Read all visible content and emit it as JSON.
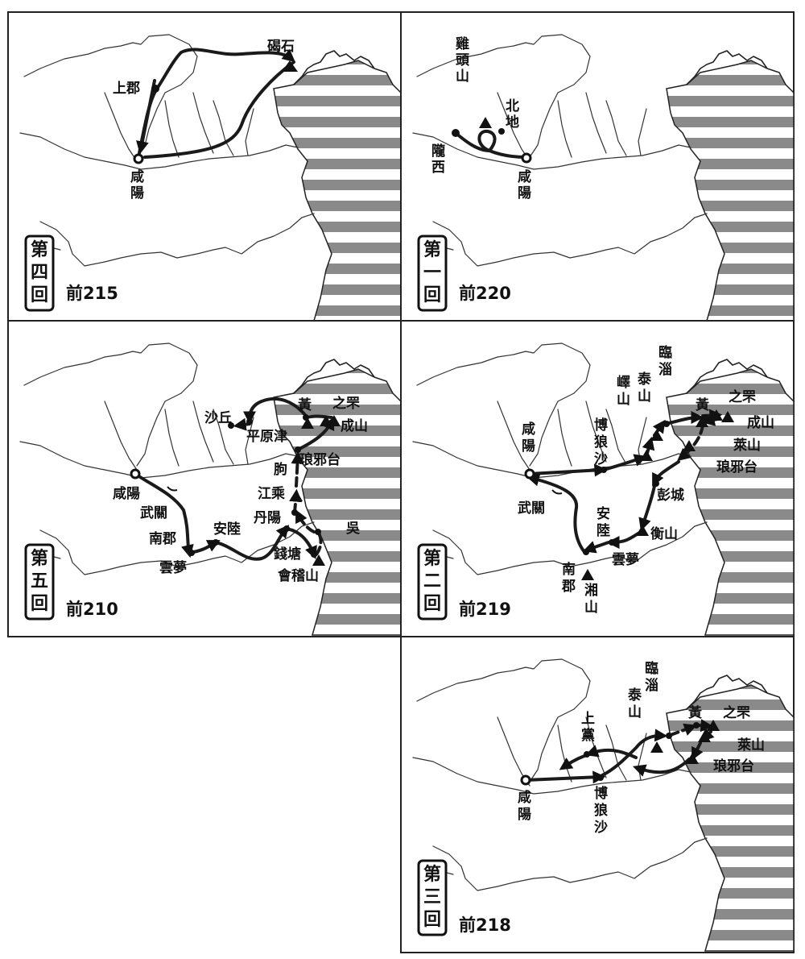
{
  "panels": [
    {
      "id": "p4",
      "badge": [
        "第",
        "四",
        "回"
      ],
      "date": "前215",
      "places": [
        {
          "text": "碣石",
          "kind": "mountain",
          "vertical": false
        },
        {
          "text": "上郡",
          "kind": "city",
          "vertical": false
        },
        {
          "text": "咸陽",
          "kind": "capital",
          "vertical": true
        }
      ]
    },
    {
      "id": "p1",
      "badge": [
        "第",
        "一",
        "回"
      ],
      "date": "前220",
      "places": [
        {
          "text": "雞頭山",
          "kind": "mountain",
          "vertical": true
        },
        {
          "text": "北地",
          "kind": "city",
          "vertical": true
        },
        {
          "text": "隴西",
          "kind": "city",
          "vertical": true
        },
        {
          "text": "咸陽",
          "kind": "capital",
          "vertical": true
        }
      ]
    },
    {
      "id": "p5",
      "badge": [
        "第",
        "五",
        "回"
      ],
      "date": "前210",
      "places": [
        {
          "text": "沙丘",
          "kind": "city",
          "vertical": false
        },
        {
          "text": "黃",
          "kind": "city",
          "vertical": false
        },
        {
          "text": "之罘",
          "kind": "mountain",
          "vertical": false
        },
        {
          "text": "成山",
          "kind": "mountain",
          "vertical": false
        },
        {
          "text": "平原津",
          "kind": "city",
          "vertical": false
        },
        {
          "text": "琅邪台",
          "kind": "mountain",
          "vertical": false
        },
        {
          "text": "朐",
          "kind": "city",
          "vertical": false
        },
        {
          "text": "江乘",
          "kind": "city",
          "vertical": false
        },
        {
          "text": "丹陽",
          "kind": "city",
          "vertical": false
        },
        {
          "text": "吳",
          "kind": "city",
          "vertical": false
        },
        {
          "text": "錢塘",
          "kind": "city",
          "vertical": false
        },
        {
          "text": "會稽山",
          "kind": "mountain",
          "vertical": false
        },
        {
          "text": "咸陽",
          "kind": "capital",
          "vertical": false
        },
        {
          "text": "武關",
          "kind": "pass",
          "vertical": false
        },
        {
          "text": "南郡",
          "kind": "city",
          "vertical": false
        },
        {
          "text": "安陸",
          "kind": "city",
          "vertical": false
        },
        {
          "text": "雲夢",
          "kind": "city",
          "vertical": false
        }
      ]
    },
    {
      "id": "p2",
      "badge": [
        "第",
        "二",
        "回"
      ],
      "date": "前219",
      "places": [
        {
          "text": "臨淄",
          "kind": "city",
          "vertical": true
        },
        {
          "text": "泰山",
          "kind": "mountain",
          "vertical": true
        },
        {
          "text": "嶧山",
          "kind": "mountain",
          "vertical": true
        },
        {
          "text": "黃",
          "kind": "city",
          "vertical": false
        },
        {
          "text": "之罘",
          "kind": "mountain",
          "vertical": false
        },
        {
          "text": "成山",
          "kind": "mountain",
          "vertical": false
        },
        {
          "text": "萊山",
          "kind": "mountain",
          "vertical": false
        },
        {
          "text": "琅邪台",
          "kind": "mountain",
          "vertical": false
        },
        {
          "text": "咸陽",
          "kind": "capital",
          "vertical": true
        },
        {
          "text": "博狼沙",
          "kind": "city",
          "vertical": true
        },
        {
          "text": "彭城",
          "kind": "city",
          "vertical": false
        },
        {
          "text": "武關",
          "kind": "pass",
          "vertical": false
        },
        {
          "text": "安陸",
          "kind": "city",
          "vertical": true
        },
        {
          "text": "衡山",
          "kind": "mountain",
          "vertical": false
        },
        {
          "text": "雲夢",
          "kind": "city",
          "vertical": false
        },
        {
          "text": "南郡",
          "kind": "city",
          "vertical": true
        },
        {
          "text": "湘山",
          "kind": "mountain",
          "vertical": true
        }
      ]
    },
    {
      "id": "p3",
      "badge": [
        "第",
        "三",
        "回"
      ],
      "date": "前218",
      "places": [
        {
          "text": "臨淄",
          "kind": "city",
          "vertical": true
        },
        {
          "text": "泰山",
          "kind": "mountain",
          "vertical": true
        },
        {
          "text": "黃",
          "kind": "city",
          "vertical": false
        },
        {
          "text": "之罘",
          "kind": "mountain",
          "vertical": false
        },
        {
          "text": "萊山",
          "kind": "mountain",
          "vertical": false
        },
        {
          "text": "琅邪台",
          "kind": "mountain",
          "vertical": false
        },
        {
          "text": "上黨",
          "kind": "city",
          "vertical": true
        },
        {
          "text": "咸陽",
          "kind": "capital",
          "vertical": true
        },
        {
          "text": "博狼沙",
          "kind": "city",
          "vertical": true
        }
      ]
    }
  ]
}
